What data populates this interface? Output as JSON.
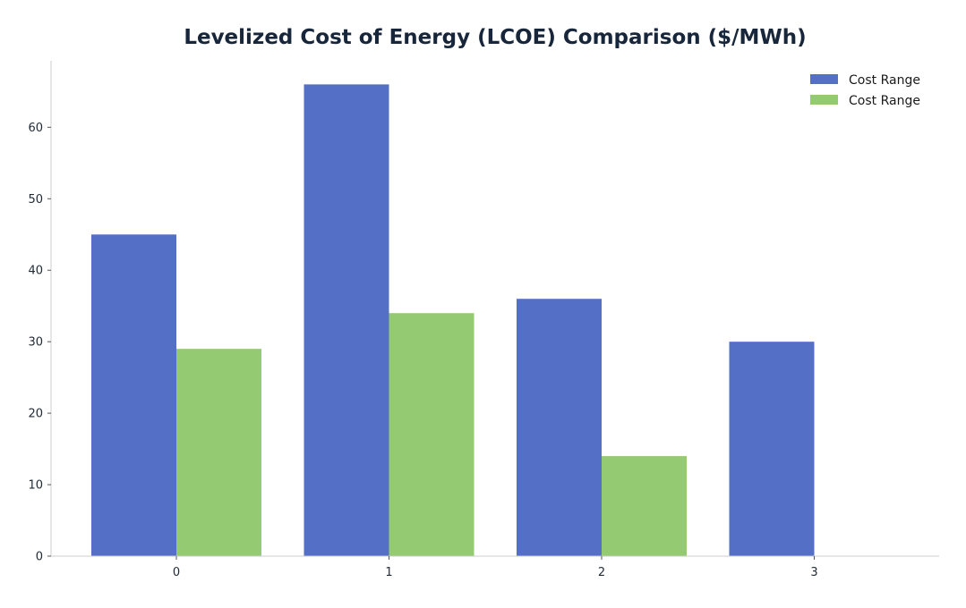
{
  "chart_data": {
    "type": "bar",
    "title": "Levelized Cost of Energy (LCOE) Comparison ($/MWh)",
    "xlabel": "",
    "ylabel": "",
    "categories": [
      "0",
      "1",
      "2",
      "3"
    ],
    "series": [
      {
        "name": "Cost Range",
        "color": "#5470c6",
        "values": [
          45,
          66,
          36,
          30
        ]
      },
      {
        "name": "Cost Range",
        "color": "#93ca72",
        "values": [
          29,
          34,
          14,
          null
        ]
      }
    ],
    "ylim": [
      0,
      69.3
    ],
    "yticks": [
      0,
      10,
      20,
      30,
      40,
      50,
      60
    ],
    "grid": false,
    "legend_position": "top-right"
  }
}
